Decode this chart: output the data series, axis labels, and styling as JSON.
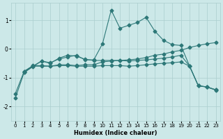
{
  "xlabel": "Humidex (Indice chaleur)",
  "background_color": "#cce8e8",
  "grid_color": "#aacece",
  "line_color": "#2d7878",
  "xlim": [
    -0.5,
    23.5
  ],
  "ylim": [
    -2.5,
    1.6
  ],
  "yticks": [
    -2,
    -1,
    0,
    1
  ],
  "xticks": [
    0,
    1,
    2,
    3,
    4,
    5,
    6,
    7,
    8,
    9,
    10,
    11,
    12,
    13,
    14,
    15,
    16,
    17,
    18,
    19,
    20,
    21,
    22,
    23
  ],
  "lines": [
    {
      "x": [
        0,
        1,
        2,
        3,
        4,
        5,
        6,
        7,
        8,
        9,
        10,
        11,
        12,
        13,
        14,
        15,
        16,
        17,
        18,
        19,
        20,
        21,
        22,
        23
      ],
      "y": [
        -1.7,
        -0.82,
        -0.62,
        -0.42,
        -0.48,
        -0.35,
        -0.28,
        -0.22,
        -0.38,
        -0.38,
        0.18,
        1.35,
        0.72,
        0.82,
        0.92,
        1.1,
        0.62,
        0.3,
        0.15,
        0.12,
        -0.6,
        -1.28,
        -1.33,
        -1.43
      ]
    },
    {
      "x": [
        0,
        1,
        2,
        3,
        4,
        5,
        6,
        7,
        8,
        9,
        10,
        11,
        12,
        13,
        14,
        15,
        16,
        17,
        18,
        19,
        20,
        21,
        22,
        23
      ],
      "y": [
        -1.55,
        -0.78,
        -0.6,
        -0.6,
        -0.6,
        -0.55,
        -0.55,
        -0.58,
        -0.55,
        -0.55,
        -0.45,
        -0.42,
        -0.4,
        -0.38,
        -0.35,
        -0.3,
        -0.22,
        -0.18,
        -0.1,
        -0.05,
        0.05,
        0.12,
        0.18,
        0.22
      ]
    },
    {
      "x": [
        1,
        2,
        3,
        4,
        5,
        6,
        7,
        8,
        9,
        10,
        11,
        12,
        13,
        14,
        15,
        16,
        17,
        18,
        19,
        20,
        21,
        22,
        23
      ],
      "y": [
        -0.82,
        -0.6,
        -0.42,
        -0.5,
        -0.32,
        -0.22,
        -0.25,
        -0.36,
        -0.4,
        -0.4,
        -0.4,
        -0.4,
        -0.42,
        -0.4,
        -0.38,
        -0.35,
        -0.32,
        -0.28,
        -0.22,
        -0.6,
        -1.28,
        -1.32,
        -1.42
      ]
    },
    {
      "x": [
        1,
        2,
        3,
        4,
        5,
        6,
        7,
        8,
        9,
        10,
        11,
        12,
        13,
        14,
        15,
        16,
        17,
        18,
        19,
        20,
        21,
        22,
        23
      ],
      "y": [
        -0.78,
        -0.58,
        -0.58,
        -0.6,
        -0.58,
        -0.58,
        -0.6,
        -0.6,
        -0.6,
        -0.58,
        -0.58,
        -0.58,
        -0.6,
        -0.58,
        -0.55,
        -0.52,
        -0.5,
        -0.48,
        -0.45,
        -0.6,
        -1.28,
        -1.32,
        -1.42
      ]
    }
  ]
}
